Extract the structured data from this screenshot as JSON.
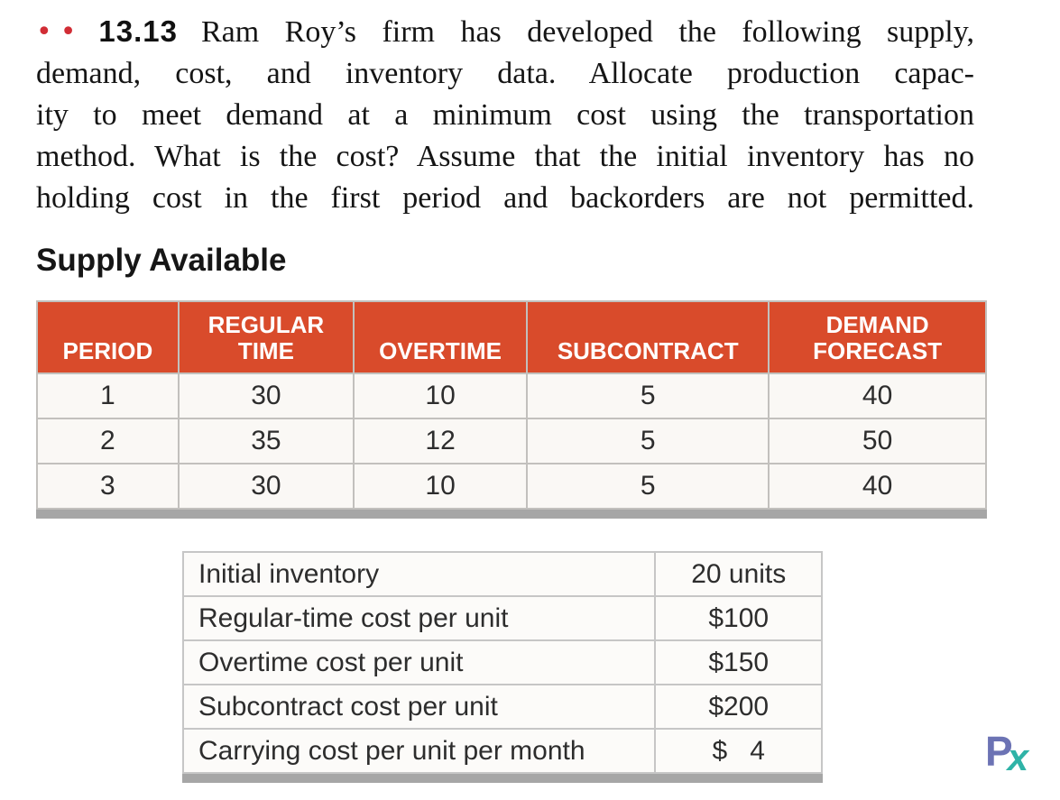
{
  "problem": {
    "marker": "••",
    "number": "13.13",
    "line1_rest": "Ram Roy’s firm has developed the following supply,",
    "lines": [
      "demand, cost, and inventory data. Allocate production capac-",
      "ity to meet demand at a minimum cost using the transportation",
      "method. What is the cost? Assume that the initial inventory has no",
      "holding cost in the first period and backorders are not permitted."
    ]
  },
  "section": {
    "heading": "Supply Available"
  },
  "supply_table": {
    "headers": [
      "PERIOD",
      "REGULAR TIME",
      "OVERTIME",
      "SUBCONTRACT",
      "DEMAND FORECAST"
    ],
    "rows": [
      [
        "1",
        "30",
        "10",
        "5",
        "40"
      ],
      [
        "2",
        "35",
        "12",
        "5",
        "50"
      ],
      [
        "3",
        "30",
        "10",
        "5",
        "40"
      ]
    ]
  },
  "cost_table": {
    "rows": [
      {
        "label": "Initial inventory",
        "value": "20 units"
      },
      {
        "label": "Regular-time cost per unit",
        "value": "$100"
      },
      {
        "label": "Overtime cost per unit",
        "value": "$150"
      },
      {
        "label": "Subcontract cost per unit",
        "value": "$200"
      },
      {
        "label": "Carrying cost per unit per month",
        "value": "$   4"
      }
    ]
  },
  "logo": {
    "p": "P",
    "x": "x"
  },
  "colors": {
    "header_bg": "#d94b2b",
    "header_text": "#ffffff",
    "marker_red": "#d12d35",
    "logo_p": "#6c73b4",
    "logo_x": "#2fb3a7",
    "bottom_bar": "#a6a6a6"
  }
}
